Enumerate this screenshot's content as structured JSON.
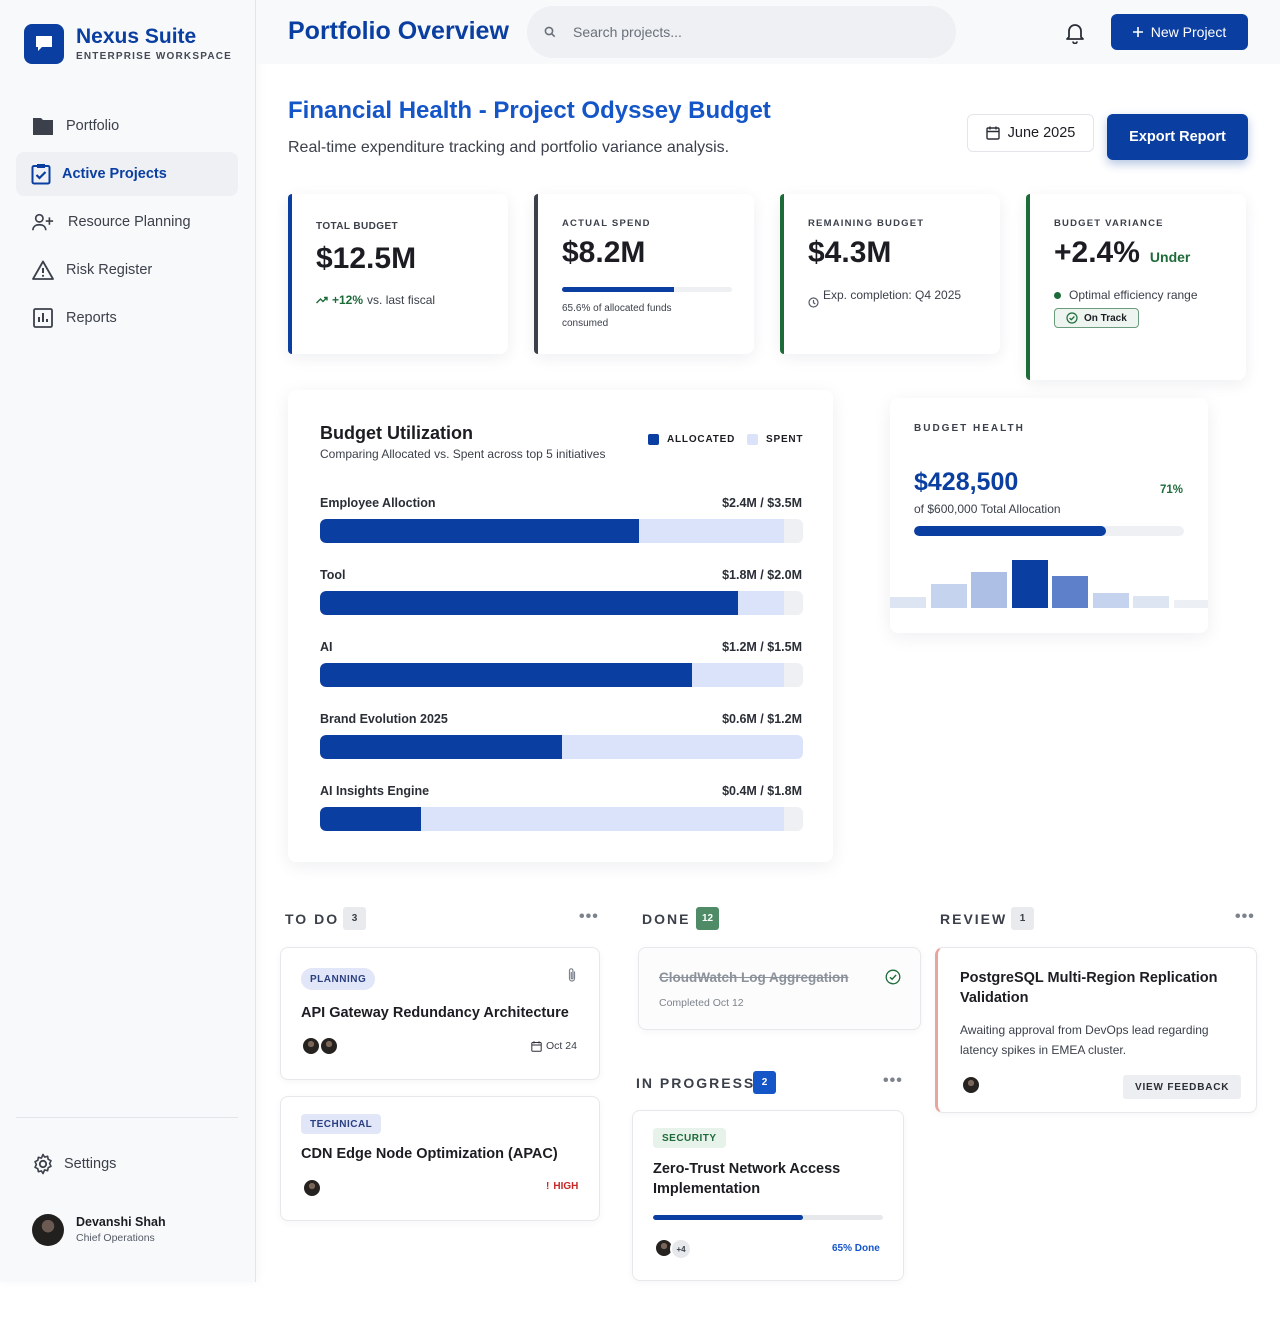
{
  "brand": {
    "name": "Nexus Suite",
    "subtitle": "ENTERPRISE WORKSPACE"
  },
  "sidebar": {
    "items": [
      {
        "label": "Portfolio",
        "icon": "folder-icon"
      },
      {
        "label": "Active Projects",
        "icon": "clipboard-check-icon",
        "active": true
      },
      {
        "label": "Resource Planning",
        "icon": "user-plus-icon"
      },
      {
        "label": "Risk Register",
        "icon": "warning-icon"
      },
      {
        "label": "Reports",
        "icon": "bar-chart-icon"
      }
    ],
    "settings_label": "Settings",
    "user": {
      "name": "Devanshi Shah",
      "role": "Chief Operations"
    }
  },
  "header": {
    "title": "Portfolio Overview",
    "search_placeholder": "Search projects...",
    "new_project_label": "New Project"
  },
  "section": {
    "title": "Financial Health - Project Odyssey Budget",
    "subtitle": "Real-time expenditure tracking and portfolio variance analysis.",
    "date_label": "June 2025",
    "export_label": "Export Report"
  },
  "kpis": {
    "total": {
      "label": "TOTAL BUDGET",
      "value": "$12.5M",
      "trend": "+12%",
      "trend_suffix": "vs. last fiscal"
    },
    "actual": {
      "label": "ACTUAL SPEND",
      "value": "$8.2M",
      "progress": 0.656,
      "note": "65.6% of allocated funds consumed"
    },
    "remaining": {
      "label": "REMAINING BUDGET",
      "value": "$4.3M",
      "note": "Exp. completion: Q4 2025"
    },
    "variance": {
      "label": "BUDGET VARIANCE",
      "value": "+2.4%",
      "qualifier": "Under",
      "note": "Optimal efficiency range",
      "badge": "On Track"
    }
  },
  "utilization": {
    "title": "Budget Utilization",
    "subtitle": "Comparing Allocated vs. Spent across top 5 initiatives",
    "legend": {
      "allocated": "ALLOCATED",
      "spent": "SPENT"
    },
    "rows": [
      {
        "label": "Employee Alloction",
        "value_text": "$2.4M / $3.5M",
        "spent_frac": 0.66,
        "cap_frac": 0.96
      },
      {
        "label": "Tool",
        "value_text": "$1.8M / $2.0M",
        "spent_frac": 0.865,
        "cap_frac": 0.96
      },
      {
        "label": "AI",
        "value_text": "$1.2M / $1.5M",
        "spent_frac": 0.77,
        "cap_frac": 0.96
      },
      {
        "label": "Brand Evolution 2025",
        "value_text": "$0.6M / $1.2M",
        "spent_frac": 0.5,
        "cap_frac": 1.0
      },
      {
        "label": "AI Insights Engine",
        "value_text": "$0.4M / $1.8M",
        "spent_frac": 0.21,
        "cap_frac": 0.96
      }
    ]
  },
  "health": {
    "label": "BUDGET HEALTH",
    "value": "$428,500",
    "percent": "71%",
    "progress": 0.71,
    "subtitle": "of $600,000 Total Allocation",
    "bars": [
      0.22,
      0.5,
      0.75,
      1.0,
      0.66,
      0.32,
      0.24,
      0.16
    ],
    "bar_colors": [
      "#dde4f2",
      "#c6d3ee",
      "#aebfe5",
      "#0a3ea0",
      "#5e7fc9",
      "#c6d3ee",
      "#dde4f2",
      "#eceff4"
    ]
  },
  "colors": {
    "brand": "#0a3ea0",
    "success": "#1e6b3a",
    "danger": "#c62828"
  },
  "kanban": {
    "todo": {
      "title": "TO DO",
      "count": "3",
      "cards": [
        {
          "tag": "PLANNING",
          "title": "API Gateway Redundancy Architecture",
          "date": "Oct 24"
        },
        {
          "tag": "TECHNICAL",
          "title": "CDN Edge Node Optimization (APAC)",
          "priority": "HIGH"
        }
      ]
    },
    "done": {
      "title": "DONE",
      "count": "12",
      "cards": [
        {
          "title": "CloudWatch Log Aggregation",
          "note": "Completed Oct 12"
        }
      ]
    },
    "in_progress": {
      "title": "IN PROGRESS",
      "count": "2",
      "cards": [
        {
          "tag": "SECURITY",
          "title": "Zero-Trust Network Access Implementation",
          "extra": "+4",
          "progress": 0.65,
          "progress_label": "65% Done"
        }
      ]
    },
    "review": {
      "title": "REVIEW",
      "count": "1",
      "cards": [
        {
          "title": "PostgreSQL Multi-Region Replication Validation",
          "description": "Awaiting approval from DevOps lead regarding latency spikes in EMEA cluster.",
          "action": "VIEW FEEDBACK"
        }
      ]
    }
  }
}
